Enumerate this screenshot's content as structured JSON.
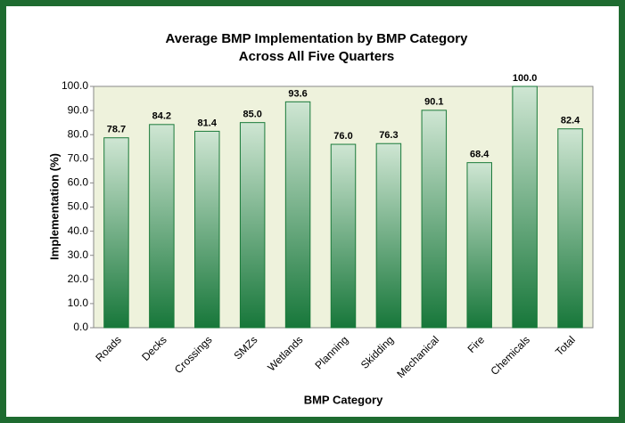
{
  "chart_data": {
    "type": "bar",
    "title": [
      "Average BMP Implementation by BMP Category",
      "Across All Five Quarters"
    ],
    "xlabel": "BMP Category",
    "ylabel": "Implementation (%)",
    "categories": [
      "Roads",
      "Decks",
      "Crossings",
      "SMZs",
      "Wetlands",
      "Planning",
      "Skidding",
      "Mechanical",
      "Fire",
      "Chemicals",
      "Total"
    ],
    "values": [
      78.7,
      84.2,
      81.4,
      85.0,
      93.6,
      76.0,
      76.3,
      90.1,
      68.4,
      100.0,
      82.4
    ],
    "value_labels": [
      "78.7",
      "84.2",
      "81.4",
      "85.0",
      "93.6",
      "76.0",
      "76.3",
      "90.1",
      "68.4",
      "100.0",
      "82.4"
    ],
    "color": "#1a7a3a",
    "ylim": [
      0,
      100
    ],
    "yticks": [
      {
        "value": 0,
        "label": "0.0"
      },
      {
        "value": 10,
        "label": "10.0"
      },
      {
        "value": 20,
        "label": "20.0"
      },
      {
        "value": 30,
        "label": "30.0"
      },
      {
        "value": 40,
        "label": "40.0"
      },
      {
        "value": 50,
        "label": "50.0"
      },
      {
        "value": 60,
        "label": "60.0"
      },
      {
        "value": 70,
        "label": "70.0"
      },
      {
        "value": 80,
        "label": "80.0"
      },
      {
        "value": 90,
        "label": "90.0"
      },
      {
        "value": 100,
        "label": "100.0"
      }
    ],
    "grid": false
  }
}
